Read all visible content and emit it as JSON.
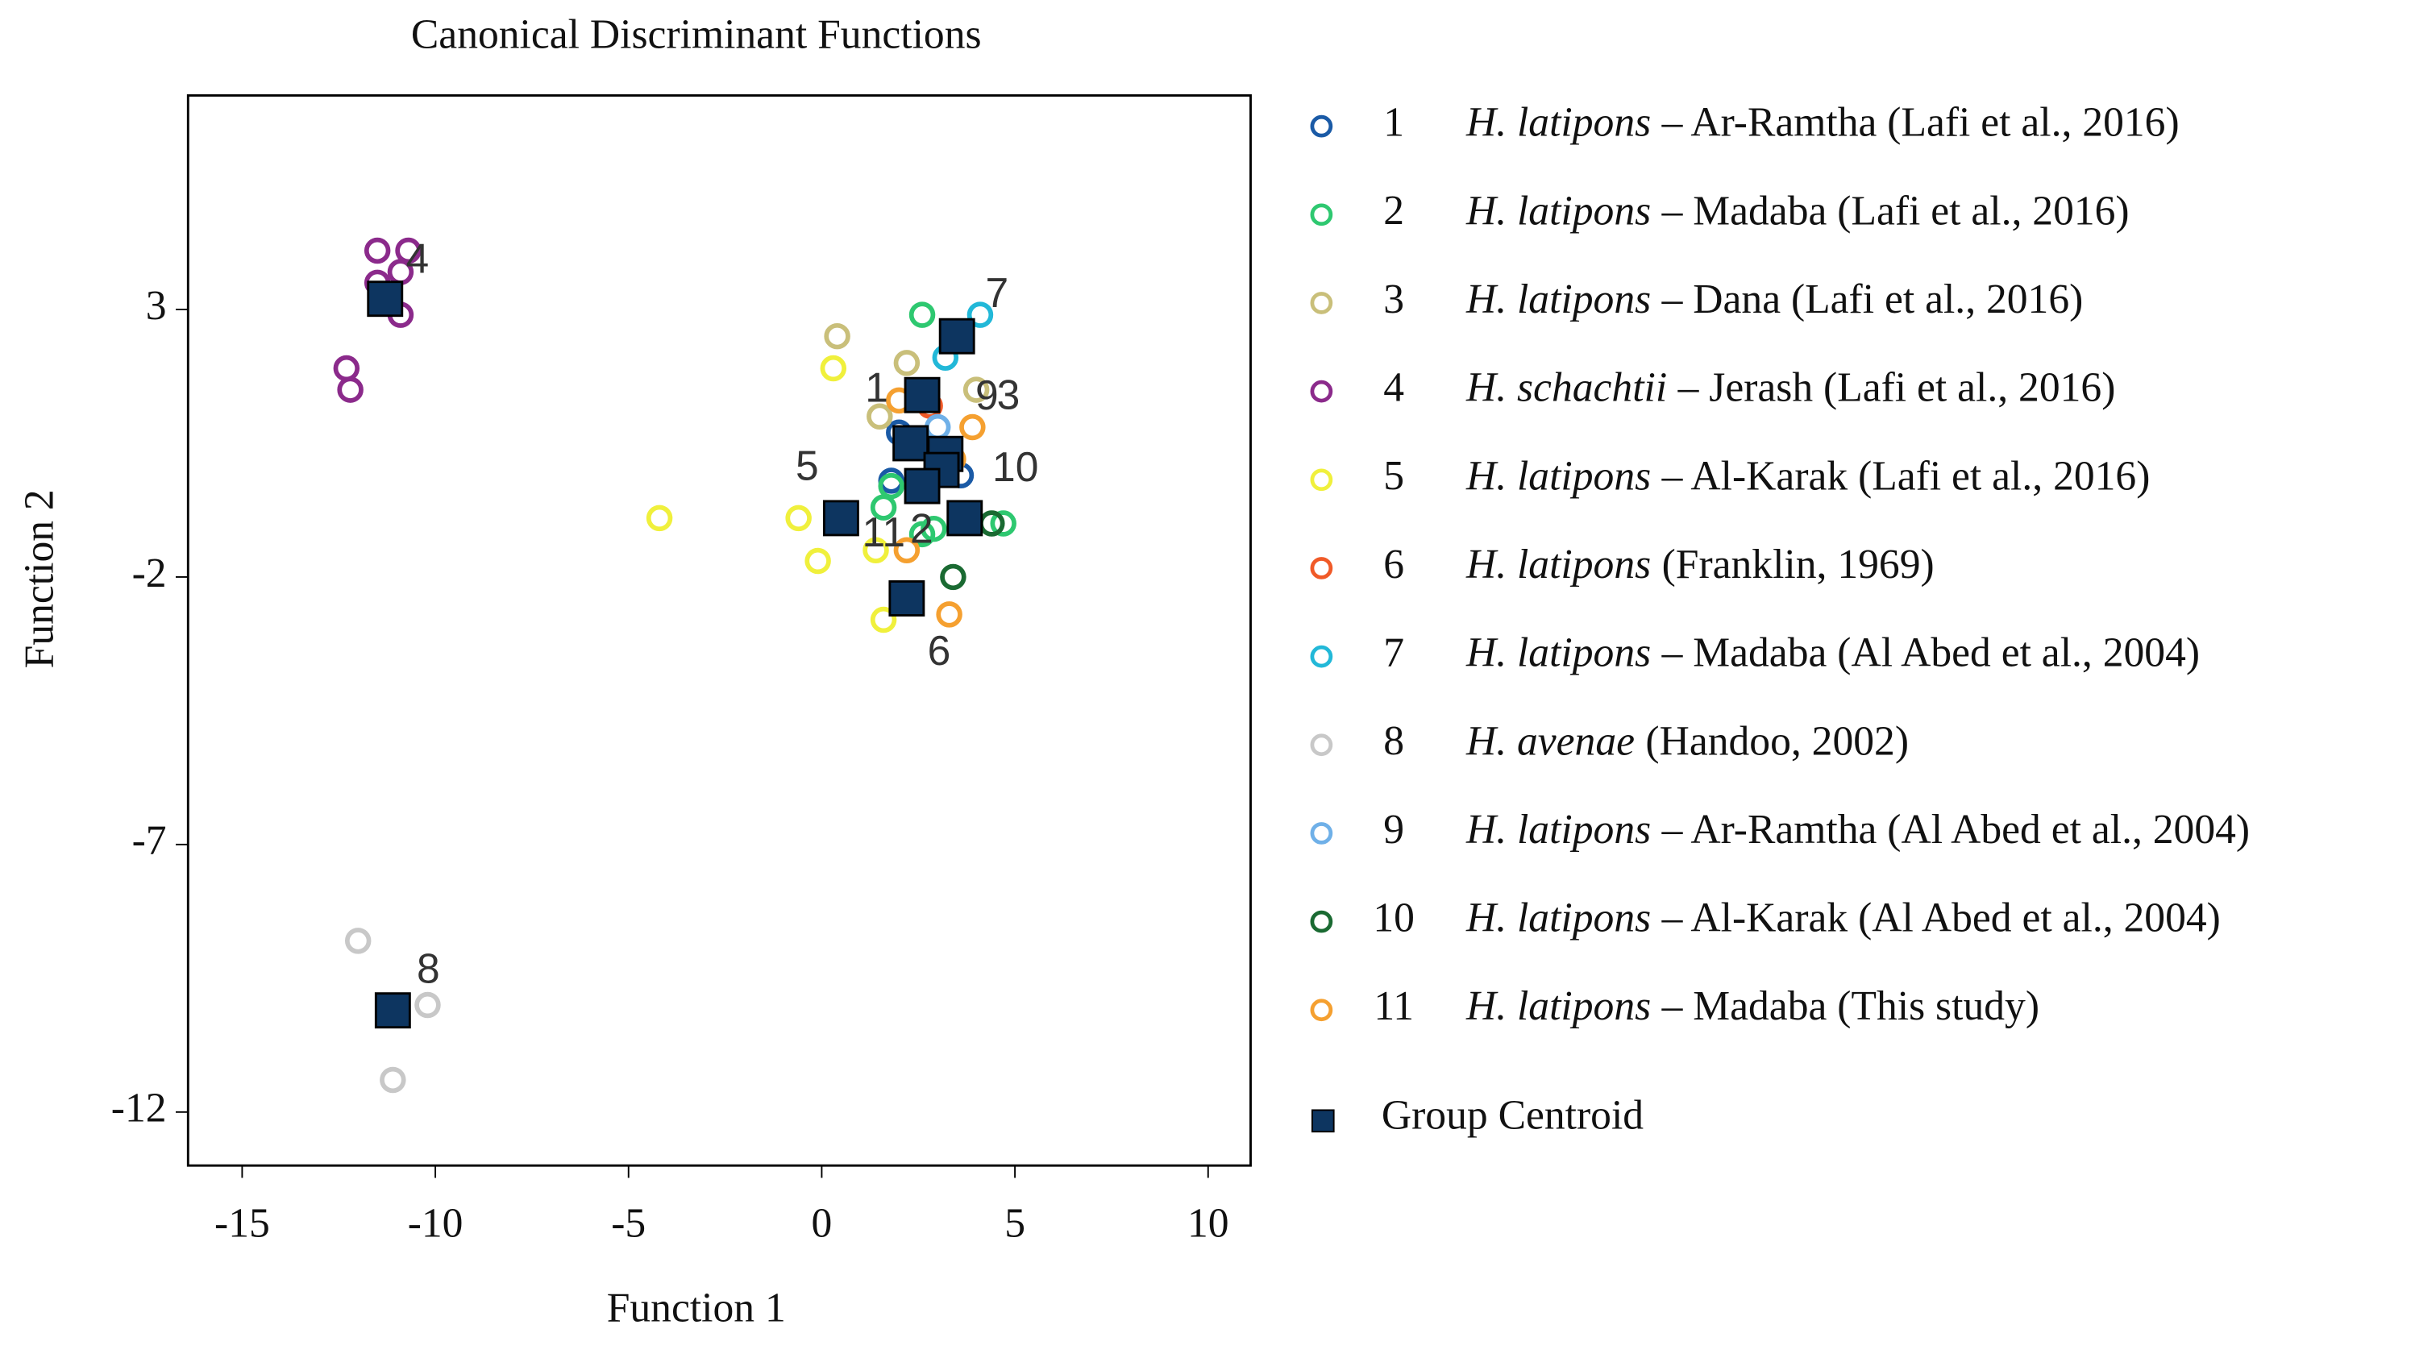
{
  "chart_data": {
    "type": "scatter",
    "title": "Canonical Discriminant Functions",
    "x_label": "Function 1",
    "y_label": "Function 2",
    "xlim": [
      -16.4,
      11.1
    ],
    "ylim": [
      -13,
      7
    ],
    "xticks": [
      -15,
      -10,
      -5,
      0,
      5,
      10
    ],
    "yticks": [
      3,
      -2,
      -7,
      -12
    ],
    "series": [
      {
        "label": "1",
        "species": "H. latipons",
        "source": "– Ar-Ramtha (Lafi et al., 2016)",
        "color": "#1a5aa6",
        "x": [
          1.8,
          2.0,
          3.6
        ],
        "y": [
          -0.2,
          0.7,
          -0.1
        ]
      },
      {
        "label": "2",
        "species": "H. latipons",
        "source": "– Madaba (Lafi et al., 2016)",
        "color": "#2ec870",
        "x": [
          2.6,
          1.6,
          1.8,
          4.7,
          2.6,
          2.9
        ],
        "y": [
          2.9,
          -0.7,
          -0.3,
          -1.0,
          -1.2,
          -1.1
        ]
      },
      {
        "label": "3",
        "species": "H. latipons",
        "source": "– Dana (Lafi et al., 2016)",
        "color": "#c9bf7a",
        "x": [
          0.4,
          2.2,
          4.0,
          1.5
        ],
        "y": [
          2.5,
          2.0,
          1.5,
          1.0
        ]
      },
      {
        "label": "4",
        "species": "H. schachtii",
        "source": "– Jerash (Lafi et al., 2016)",
        "color": "#8b2a8b",
        "x": [
          -11.5,
          -10.7,
          -11.5,
          -10.9,
          -10.9,
          -12.3,
          -12.2
        ],
        "y": [
          4.1,
          4.1,
          3.5,
          3.7,
          2.9,
          1.9,
          1.5
        ]
      },
      {
        "label": "5",
        "species": "H. latipons",
        "source": "– Al-Karak (Lafi et al., 2016)",
        "color": "#f0f03c",
        "x": [
          -4.2,
          -0.6,
          -0.1,
          0.3,
          1.6,
          1.4
        ],
        "y": [
          -0.9,
          -0.9,
          -1.7,
          1.9,
          -2.8,
          -1.5
        ]
      },
      {
        "label": "6",
        "species": "H. latipons",
        "source": "(Franklin, 1969)",
        "color": "#f05a28",
        "x": [
          2.8
        ],
        "y": [
          1.2
        ]
      },
      {
        "label": "7",
        "species": "H. latipons",
        "source": "– Madaba (Al Abed et al., 2004)",
        "color": "#22b8d8",
        "x": [
          4.1,
          3.2
        ],
        "y": [
          2.9,
          2.1
        ]
      },
      {
        "label": "8",
        "species": "H. avenae",
        "source": "(Handoo, 2002)",
        "color": "#c8c8c8",
        "x": [
          -12.0,
          -10.2,
          -11.1
        ],
        "y": [
          -8.8,
          -10.0,
          -11.4
        ]
      },
      {
        "label": "9",
        "species": "H. latipons",
        "source": "– Ar-Ramtha (Al Abed et al., 2004)",
        "color": "#6fb0e8",
        "x": [
          3.0
        ],
        "y": [
          0.8
        ]
      },
      {
        "label": "10",
        "species": "H. latipons",
        "source": "– Al-Karak (Al Abed et al., 2004)",
        "color": "#1a6a32",
        "x": [
          3.4,
          4.4
        ],
        "y": [
          -2.0,
          -1.0
        ]
      },
      {
        "label": "11",
        "species": "H. latipons",
        "source": "– Madaba (This study)",
        "color": "#f5a030",
        "x": [
          3.9,
          3.3,
          2.2,
          3.4,
          2.0
        ],
        "y": [
          0.8,
          -2.7,
          -1.5,
          0.2,
          1.3
        ]
      }
    ],
    "centroids": {
      "name": "Group Centroid",
      "color": "#0d3560",
      "x": [
        2.3,
        3.7,
        2.6,
        -11.3,
        0.5,
        2.2,
        3.5,
        -11.1,
        3.2,
        3.1,
        2.6
      ],
      "y": [
        0.5,
        -0.9,
        1.4,
        3.2,
        -0.9,
        -2.4,
        2.5,
        -10.1,
        0.3,
        0.0,
        -0.3
      ]
    }
  }
}
